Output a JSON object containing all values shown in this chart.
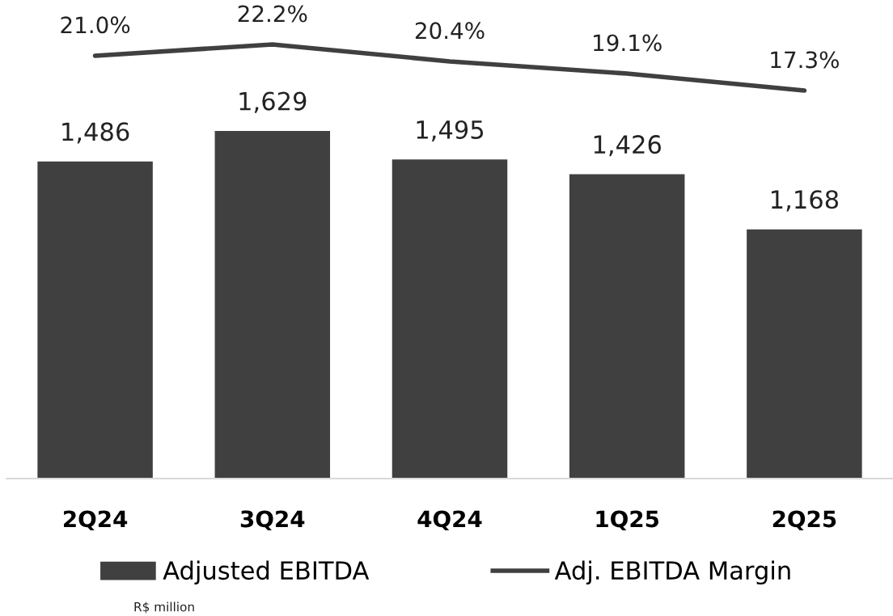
{
  "chart_data": [
    {
      "type": "bar",
      "categories": [
        "2Q24",
        "3Q24",
        "4Q24",
        "1Q25",
        "2Q25"
      ],
      "series": [
        {
          "name": "Adjusted EBITDA",
          "color": "#404040",
          "values": [
            1486,
            1629,
            1495,
            1426,
            1168
          ],
          "value_labels": [
            "1,486",
            "1,629",
            "1,495",
            "1,426",
            "1,168"
          ]
        }
      ],
      "tick_labels": "x",
      "grid": false,
      "legend": "bottom",
      "annotations": [
        "R$ million"
      ]
    },
    {
      "type": "line",
      "categories": [
        null,
        null,
        null,
        null,
        null
      ],
      "series": [
        {
          "name": "Adj. EBITDA Margin",
          "color": "#404040",
          "values": [
            21.0,
            22.2,
            20.4,
            19.1,
            17.3
          ],
          "value_labels": [
            "21.0%",
            "22.2%",
            "20.4%",
            "19.1%",
            "17.3%"
          ]
        }
      ],
      "tick_labels": false,
      "grid": false,
      "legend": "bottom",
      "marker": "none",
      "line_style": "solid"
    }
  ]
}
